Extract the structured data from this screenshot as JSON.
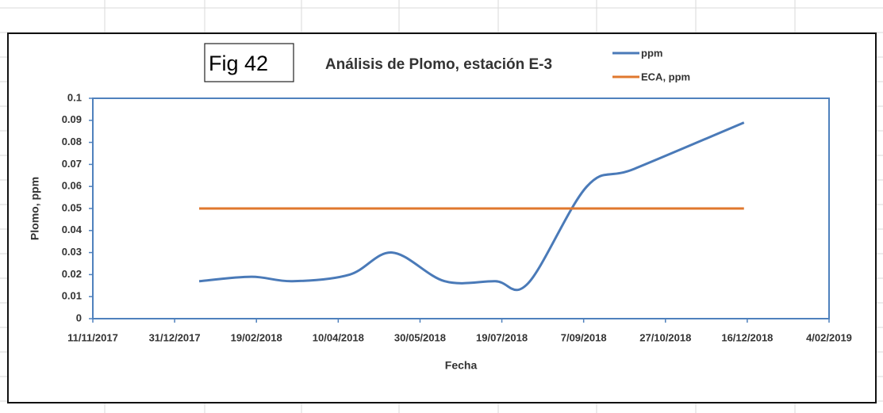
{
  "chart_data": {
    "type": "line",
    "title": "Análisis de Plomo, estación E-3",
    "annotation": "Fig 42",
    "xlabel": "Fecha",
    "ylabel": "Plomo, ppm",
    "smooth": true,
    "series": [
      {
        "name": "ppm",
        "color": "#4a7ab8",
        "x": [
          43115,
          43147,
          43172,
          43207,
          43233,
          43265,
          43296,
          43316,
          43352,
          43381,
          43448
        ],
        "values": [
          0.017,
          0.019,
          0.017,
          0.02,
          0.03,
          0.017,
          0.017,
          0.016,
          0.06,
          0.068,
          0.089
        ]
      },
      {
        "name": "ECA, ppm",
        "color": "#e0782e",
        "x": [
          43115,
          43448
        ],
        "values": [
          0.05,
          0.05
        ]
      }
    ],
    "xlim": [
      43050,
      43500
    ],
    "xticks": [
      {
        "value": 43050,
        "label": "11/11/2017"
      },
      {
        "value": 43100,
        "label": "31/12/2017"
      },
      {
        "value": 43150,
        "label": "19/02/2018"
      },
      {
        "value": 43200,
        "label": "10/04/2018"
      },
      {
        "value": 43250,
        "label": "30/05/2018"
      },
      {
        "value": 43300,
        "label": "19/07/2018"
      },
      {
        "value": 43350,
        "label": "7/09/2018"
      },
      {
        "value": 43400,
        "label": "27/10/2018"
      },
      {
        "value": 43450,
        "label": "16/12/2018"
      },
      {
        "value": 43500,
        "label": "4/02/2019"
      }
    ],
    "ylim": [
      0,
      0.1
    ],
    "yticks": [
      0,
      0.01,
      0.02,
      0.03,
      0.04,
      0.05,
      0.06,
      0.07,
      0.08,
      0.09,
      0.1
    ],
    "grid": false,
    "legend": "top-right"
  }
}
